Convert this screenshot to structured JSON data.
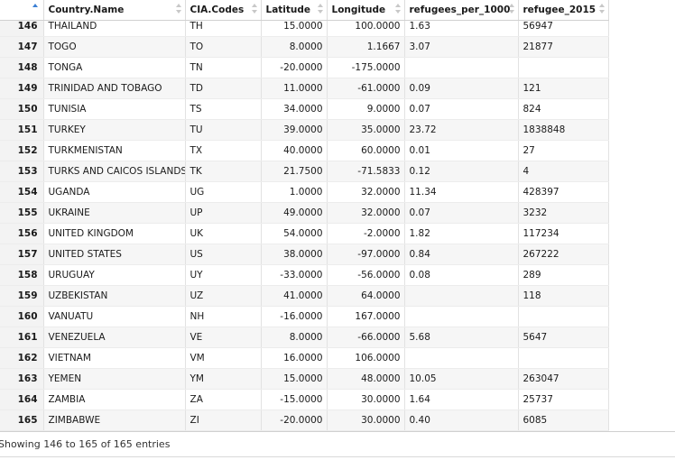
{
  "columns": [
    {
      "key": "row",
      "label": ""
    },
    {
      "key": "country",
      "label": "Country.Name"
    },
    {
      "key": "cia",
      "label": "CIA.Codes"
    },
    {
      "key": "lat",
      "label": "Latitude"
    },
    {
      "key": "lon",
      "label": "Longitude"
    },
    {
      "key": "rpt",
      "label": "refugees_per_1000"
    },
    {
      "key": "ref",
      "label": "refugee_2015"
    }
  ],
  "rows": [
    {
      "row": "146",
      "country": "THAILAND",
      "cia": "TH",
      "lat": "15.0000",
      "lon": "100.0000",
      "rpt": "1.63",
      "ref": "56947"
    },
    {
      "row": "147",
      "country": "TOGO",
      "cia": "TO",
      "lat": "8.0000",
      "lon": "1.1667",
      "rpt": "3.07",
      "ref": "21877"
    },
    {
      "row": "148",
      "country": "TONGA",
      "cia": "TN",
      "lat": "-20.0000",
      "lon": "-175.0000",
      "rpt": "",
      "ref": ""
    },
    {
      "row": "149",
      "country": "TRINIDAD AND TOBAGO",
      "cia": "TD",
      "lat": "11.0000",
      "lon": "-61.0000",
      "rpt": "0.09",
      "ref": "121"
    },
    {
      "row": "150",
      "country": "TUNISIA",
      "cia": "TS",
      "lat": "34.0000",
      "lon": "9.0000",
      "rpt": "0.07",
      "ref": "824"
    },
    {
      "row": "151",
      "country": "TURKEY",
      "cia": "TU",
      "lat": "39.0000",
      "lon": "35.0000",
      "rpt": "23.72",
      "ref": "1838848"
    },
    {
      "row": "152",
      "country": "TURKMENISTAN",
      "cia": "TX",
      "lat": "40.0000",
      "lon": "60.0000",
      "rpt": "0.01",
      "ref": "27"
    },
    {
      "row": "153",
      "country": "TURKS AND CAICOS ISLANDS",
      "cia": "TK",
      "lat": "21.7500",
      "lon": "-71.5833",
      "rpt": "0.12",
      "ref": "4"
    },
    {
      "row": "154",
      "country": "UGANDA",
      "cia": "UG",
      "lat": "1.0000",
      "lon": "32.0000",
      "rpt": "11.34",
      "ref": "428397"
    },
    {
      "row": "155",
      "country": "UKRAINE",
      "cia": "UP",
      "lat": "49.0000",
      "lon": "32.0000",
      "rpt": "0.07",
      "ref": "3232"
    },
    {
      "row": "156",
      "country": "UNITED KINGDOM",
      "cia": "UK",
      "lat": "54.0000",
      "lon": "-2.0000",
      "rpt": "1.82",
      "ref": "117234"
    },
    {
      "row": "157",
      "country": "UNITED STATES",
      "cia": "US",
      "lat": "38.0000",
      "lon": "-97.0000",
      "rpt": "0.84",
      "ref": "267222"
    },
    {
      "row": "158",
      "country": "URUGUAY",
      "cia": "UY",
      "lat": "-33.0000",
      "lon": "-56.0000",
      "rpt": "0.08",
      "ref": "289"
    },
    {
      "row": "159",
      "country": "UZBEKISTAN",
      "cia": "UZ",
      "lat": "41.0000",
      "lon": "64.0000",
      "rpt": "",
      "ref": "118"
    },
    {
      "row": "160",
      "country": "VANUATU",
      "cia": "NH",
      "lat": "-16.0000",
      "lon": "167.0000",
      "rpt": "",
      "ref": ""
    },
    {
      "row": "161",
      "country": "VENEZUELA",
      "cia": "VE",
      "lat": "8.0000",
      "lon": "-66.0000",
      "rpt": "5.68",
      "ref": "5647"
    },
    {
      "row": "162",
      "country": "VIETNAM",
      "cia": "VM",
      "lat": "16.0000",
      "lon": "106.0000",
      "rpt": "",
      "ref": ""
    },
    {
      "row": "163",
      "country": "YEMEN",
      "cia": "YM",
      "lat": "15.0000",
      "lon": "48.0000",
      "rpt": "10.05",
      "ref": "263047"
    },
    {
      "row": "164",
      "country": "ZAMBIA",
      "cia": "ZA",
      "lat": "-15.0000",
      "lon": "30.0000",
      "rpt": "1.64",
      "ref": "25737"
    },
    {
      "row": "165",
      "country": "ZIMBABWE",
      "cia": "ZI",
      "lat": "-20.0000",
      "lon": "30.0000",
      "rpt": "0.40",
      "ref": "6085"
    }
  ],
  "status": {
    "text": "Showing 146 to 165 of 165 entries"
  },
  "colors": {
    "sort_active": "#3b7fd4",
    "sort_inactive": "#c8c8c8"
  }
}
